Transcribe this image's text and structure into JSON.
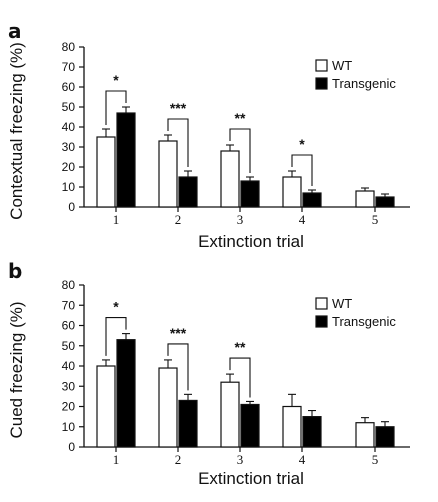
{
  "chart_data": [
    {
      "type": "bar",
      "panel": "a",
      "ylabel": "Contextual freezing (%)",
      "xlabel": "Extinction trial",
      "ylim": [
        0,
        80
      ],
      "yticks": [
        0,
        10,
        20,
        30,
        40,
        50,
        60,
        70,
        80
      ],
      "categories": [
        "1",
        "2",
        "3",
        "4",
        "5"
      ],
      "legend_position": "top-right",
      "series": [
        {
          "name": "WT",
          "color": "#ffffff",
          "values": [
            35,
            33,
            28,
            15,
            8
          ],
          "errors": [
            4,
            3,
            3,
            3,
            1.5
          ]
        },
        {
          "name": "Transgenic",
          "color": "#000000",
          "values": [
            47,
            15,
            13,
            7,
            5
          ],
          "errors": [
            3,
            3,
            2,
            1.5,
            1.5
          ]
        }
      ],
      "significance": [
        "*",
        "***",
        "**",
        "*",
        ""
      ]
    },
    {
      "type": "bar",
      "panel": "b",
      "ylabel": "Cued freezing (%)",
      "xlabel": "Extinction trial",
      "ylim": [
        0,
        80
      ],
      "yticks": [
        0,
        10,
        20,
        30,
        40,
        50,
        60,
        70,
        80
      ],
      "categories": [
        "1",
        "2",
        "3",
        "4",
        "5"
      ],
      "legend_position": "top-right",
      "series": [
        {
          "name": "WT",
          "color": "#ffffff",
          "values": [
            40,
            39,
            32,
            20,
            12
          ],
          "errors": [
            3,
            4,
            4,
            6,
            2.5
          ]
        },
        {
          "name": "Transgenic",
          "color": "#000000",
          "values": [
            53,
            23,
            21,
            15,
            10
          ],
          "errors": [
            3,
            3,
            1.5,
            3,
            2.5
          ]
        }
      ],
      "significance": [
        "*",
        "***",
        "**",
        "",
        ""
      ]
    }
  ]
}
